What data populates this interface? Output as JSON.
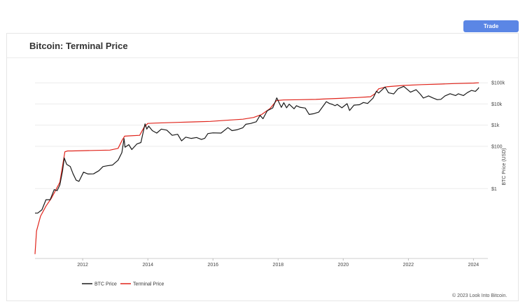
{
  "header": {
    "trade_label": "Trade"
  },
  "card": {
    "title": "Bitcoin: Terminal Price"
  },
  "footer": {
    "copyright": "© 2023 Look Into Bitcoin."
  },
  "chart_data": {
    "type": "line",
    "title": "Bitcoin: Terminal Price",
    "xlabel": "",
    "ylabel": "BTC Price  (USD)",
    "y_scale": "log",
    "xlim": [
      "2010-07-15",
      "2024-04-01"
    ],
    "ylim": [
      0.0005,
      1000000
    ],
    "x_ticks": [
      "2012",
      "2014",
      "2016",
      "2018",
      "2020",
      "2022",
      "2024"
    ],
    "y_ticks": [
      {
        "value": 100000,
        "label": "$100k"
      },
      {
        "value": 10000,
        "label": "$10k"
      },
      {
        "value": 1000,
        "label": "$1k"
      },
      {
        "value": 100,
        "label": "$100"
      },
      {
        "value": 1,
        "label": "$1"
      }
    ],
    "grid": true,
    "legend_position": "bottom-left",
    "series": [
      {
        "name": "BTC Price",
        "color": "#1a1a1a",
        "points": [
          [
            "2010-07-15",
            0.07
          ],
          [
            "2010-08-15",
            0.07
          ],
          [
            "2010-10-01",
            0.1
          ],
          [
            "2010-11-15",
            0.3
          ],
          [
            "2011-01-01",
            0.3
          ],
          [
            "2011-02-15",
            0.9
          ],
          [
            "2011-03-20",
            0.8
          ],
          [
            "2011-04-20",
            1.5
          ],
          [
            "2011-05-20",
            7
          ],
          [
            "2011-06-08",
            28
          ],
          [
            "2011-07-05",
            14
          ],
          [
            "2011-08-15",
            11
          ],
          [
            "2011-09-15",
            5
          ],
          [
            "2011-10-20",
            2.5
          ],
          [
            "2011-11-20",
            2.2
          ],
          [
            "2012-01-10",
            6
          ],
          [
            "2012-03-01",
            4.9
          ],
          [
            "2012-05-01",
            5
          ],
          [
            "2012-07-01",
            7
          ],
          [
            "2012-08-15",
            11
          ],
          [
            "2012-10-01",
            12
          ],
          [
            "2012-12-01",
            13
          ],
          [
            "2013-02-01",
            22
          ],
          [
            "2013-03-15",
            50
          ],
          [
            "2013-04-09",
            230
          ],
          [
            "2013-04-20",
            90
          ],
          [
            "2013-06-01",
            120
          ],
          [
            "2013-07-05",
            70
          ],
          [
            "2013-09-01",
            130
          ],
          [
            "2013-10-15",
            150
          ],
          [
            "2013-11-30",
            1150
          ],
          [
            "2013-12-20",
            650
          ],
          [
            "2014-01-10",
            900
          ],
          [
            "2014-02-20",
            550
          ],
          [
            "2014-04-10",
            420
          ],
          [
            "2014-06-01",
            650
          ],
          [
            "2014-08-01",
            580
          ],
          [
            "2014-10-01",
            330
          ],
          [
            "2014-12-01",
            370
          ],
          [
            "2015-01-14",
            180
          ],
          [
            "2015-03-01",
            270
          ],
          [
            "2015-05-01",
            235
          ],
          [
            "2015-07-01",
            260
          ],
          [
            "2015-08-25",
            210
          ],
          [
            "2015-10-01",
            240
          ],
          [
            "2015-11-05",
            400
          ],
          [
            "2016-01-01",
            430
          ],
          [
            "2016-04-01",
            420
          ],
          [
            "2016-06-17",
            760
          ],
          [
            "2016-08-02",
            550
          ],
          [
            "2016-10-01",
            610
          ],
          [
            "2016-12-01",
            750
          ],
          [
            "2017-01-04",
            1100
          ],
          [
            "2017-03-01",
            1200
          ],
          [
            "2017-05-01",
            1450
          ],
          [
            "2017-06-12",
            2900
          ],
          [
            "2017-07-15",
            2000
          ],
          [
            "2017-09-01",
            4800
          ],
          [
            "2017-11-01",
            6500
          ],
          [
            "2017-12-17",
            19500
          ],
          [
            "2018-02-06",
            6900
          ],
          [
            "2018-03-05",
            11500
          ],
          [
            "2018-04-06",
            6600
          ],
          [
            "2018-05-05",
            9800
          ],
          [
            "2018-06-29",
            5900
          ],
          [
            "2018-07-25",
            8300
          ],
          [
            "2018-09-01",
            7000
          ],
          [
            "2018-11-01",
            6400
          ],
          [
            "2018-12-15",
            3200
          ],
          [
            "2019-02-01",
            3450
          ],
          [
            "2019-04-01",
            4100
          ],
          [
            "2019-06-26",
            12900
          ],
          [
            "2019-08-01",
            10500
          ],
          [
            "2019-09-01",
            9600
          ],
          [
            "2019-10-01",
            8300
          ],
          [
            "2019-10-26",
            9500
          ],
          [
            "2019-12-17",
            6600
          ],
          [
            "2020-02-13",
            10300
          ],
          [
            "2020-03-12",
            4900
          ],
          [
            "2020-05-01",
            8800
          ],
          [
            "2020-07-01",
            9200
          ],
          [
            "2020-08-15",
            11800
          ],
          [
            "2020-10-01",
            10600
          ],
          [
            "2020-12-01",
            19000
          ],
          [
            "2021-01-08",
            40000
          ],
          [
            "2021-02-01",
            33000
          ],
          [
            "2021-04-14",
            63500
          ],
          [
            "2021-05-23",
            34000
          ],
          [
            "2021-07-20",
            29800
          ],
          [
            "2021-09-06",
            52000
          ],
          [
            "2021-11-10",
            68000
          ],
          [
            "2022-01-24",
            36000
          ],
          [
            "2022-03-29",
            47000
          ],
          [
            "2022-05-15",
            29000
          ],
          [
            "2022-06-18",
            19000
          ],
          [
            "2022-08-15",
            24000
          ],
          [
            "2022-09-30",
            19500
          ],
          [
            "2022-11-21",
            16000
          ],
          [
            "2023-01-01",
            16600
          ],
          [
            "2023-02-15",
            24000
          ],
          [
            "2023-04-14",
            30500
          ],
          [
            "2023-06-15",
            25000
          ],
          [
            "2023-07-15",
            30200
          ],
          [
            "2023-09-11",
            25000
          ],
          [
            "2023-10-25",
            34500
          ],
          [
            "2023-12-08",
            43500
          ],
          [
            "2024-01-23",
            39500
          ],
          [
            "2024-02-20",
            52000
          ],
          [
            "2024-03-01",
            60000
          ]
        ]
      },
      {
        "name": "Terminal Price",
        "color": "#e0241b",
        "points": [
          [
            "2010-07-15",
            0.0008
          ],
          [
            "2010-08-01",
            0.01
          ],
          [
            "2010-09-15",
            0.05
          ],
          [
            "2010-11-15",
            0.15
          ],
          [
            "2011-01-15",
            0.35
          ],
          [
            "2011-03-01",
            0.8
          ],
          [
            "2011-04-20",
            2
          ],
          [
            "2011-05-20",
            12
          ],
          [
            "2011-06-15",
            55
          ],
          [
            "2011-07-15",
            60
          ],
          [
            "2011-09-01",
            60
          ],
          [
            "2012-01-01",
            62
          ],
          [
            "2012-06-01",
            64
          ],
          [
            "2012-11-01",
            66
          ],
          [
            "2013-02-01",
            80
          ],
          [
            "2013-03-20",
            200
          ],
          [
            "2013-04-15",
            300
          ],
          [
            "2013-06-01",
            310
          ],
          [
            "2013-10-01",
            330
          ],
          [
            "2013-11-20",
            800
          ],
          [
            "2013-12-31",
            1200
          ],
          [
            "2014-04-01",
            1250
          ],
          [
            "2014-12-01",
            1350
          ],
          [
            "2015-06-01",
            1420
          ],
          [
            "2015-12-01",
            1500
          ],
          [
            "2016-06-01",
            1700
          ],
          [
            "2016-12-01",
            1900
          ],
          [
            "2017-04-01",
            2300
          ],
          [
            "2017-07-01",
            3200
          ],
          [
            "2017-10-01",
            6000
          ],
          [
            "2017-12-15",
            14500
          ],
          [
            "2018-03-01",
            15500
          ],
          [
            "2018-09-01",
            16000
          ],
          [
            "2019-03-01",
            16500
          ],
          [
            "2019-07-01",
            17500
          ],
          [
            "2019-12-01",
            18500
          ],
          [
            "2020-06-01",
            20000
          ],
          [
            "2020-11-01",
            22000
          ],
          [
            "2020-12-20",
            30000
          ],
          [
            "2021-02-01",
            52000
          ],
          [
            "2021-05-01",
            65000
          ],
          [
            "2021-11-01",
            75000
          ],
          [
            "2022-06-01",
            82000
          ],
          [
            "2023-01-01",
            87000
          ],
          [
            "2023-06-01",
            92000
          ],
          [
            "2024-01-01",
            97000
          ],
          [
            "2024-03-01",
            100000
          ]
        ]
      }
    ]
  }
}
